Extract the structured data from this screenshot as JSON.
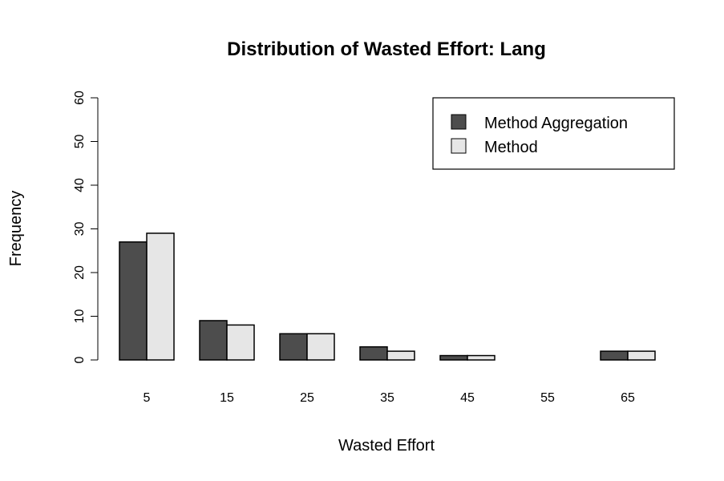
{
  "chart_data": {
    "type": "bar",
    "title": "Distribution of Wasted Effort: Lang",
    "xlabel": "Wasted Effort",
    "ylabel": "Frequency",
    "ylim": [
      0,
      60
    ],
    "yticks": [
      "0",
      "10",
      "20",
      "30",
      "40",
      "50",
      "60"
    ],
    "categories": [
      "5",
      "15",
      "25",
      "35",
      "45",
      "55",
      "65"
    ],
    "series": [
      {
        "name": "Method Aggregation",
        "color": "#4d4d4d",
        "values": [
          27,
          9,
          6,
          3,
          1,
          0,
          2
        ]
      },
      {
        "name": "Method",
        "color": "#e6e6e6",
        "values": [
          29,
          8,
          6,
          2,
          1,
          0,
          2
        ]
      }
    ],
    "legend_position": "top-right",
    "grid": false
  }
}
